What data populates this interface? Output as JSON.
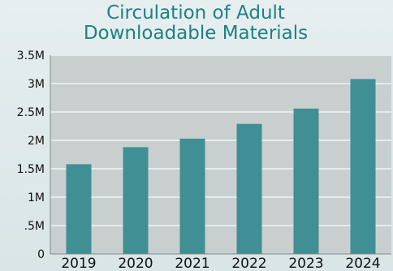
{
  "chart_data": {
    "type": "bar",
    "title": [
      "Circulation of Adult",
      "Downloadable Materials"
    ],
    "categories": [
      "2019",
      "2020",
      "2021",
      "2022",
      "2023",
      "2024"
    ],
    "values": [
      1580000,
      1880000,
      2030000,
      2290000,
      2560000,
      3080000
    ],
    "ylim": [
      0,
      3500000
    ],
    "yticks": [
      {
        "value": 0,
        "label": "0"
      },
      {
        "value": 500000,
        "label": ".5M"
      },
      {
        "value": 1000000,
        "label": "1M"
      },
      {
        "value": 1500000,
        "label": "1.5M"
      },
      {
        "value": 2000000,
        "label": "2M"
      },
      {
        "value": 2500000,
        "label": "2.5M"
      },
      {
        "value": 3000000,
        "label": "3M"
      },
      {
        "value": 3500000,
        "label": "3.5M"
      }
    ],
    "grid": true,
    "colors": {
      "bar": "#3f8f94",
      "plot_background": "#c9cfcf",
      "gridline": "#e3ebeb",
      "title": "#1f8085",
      "tick_text": "#111111"
    }
  }
}
